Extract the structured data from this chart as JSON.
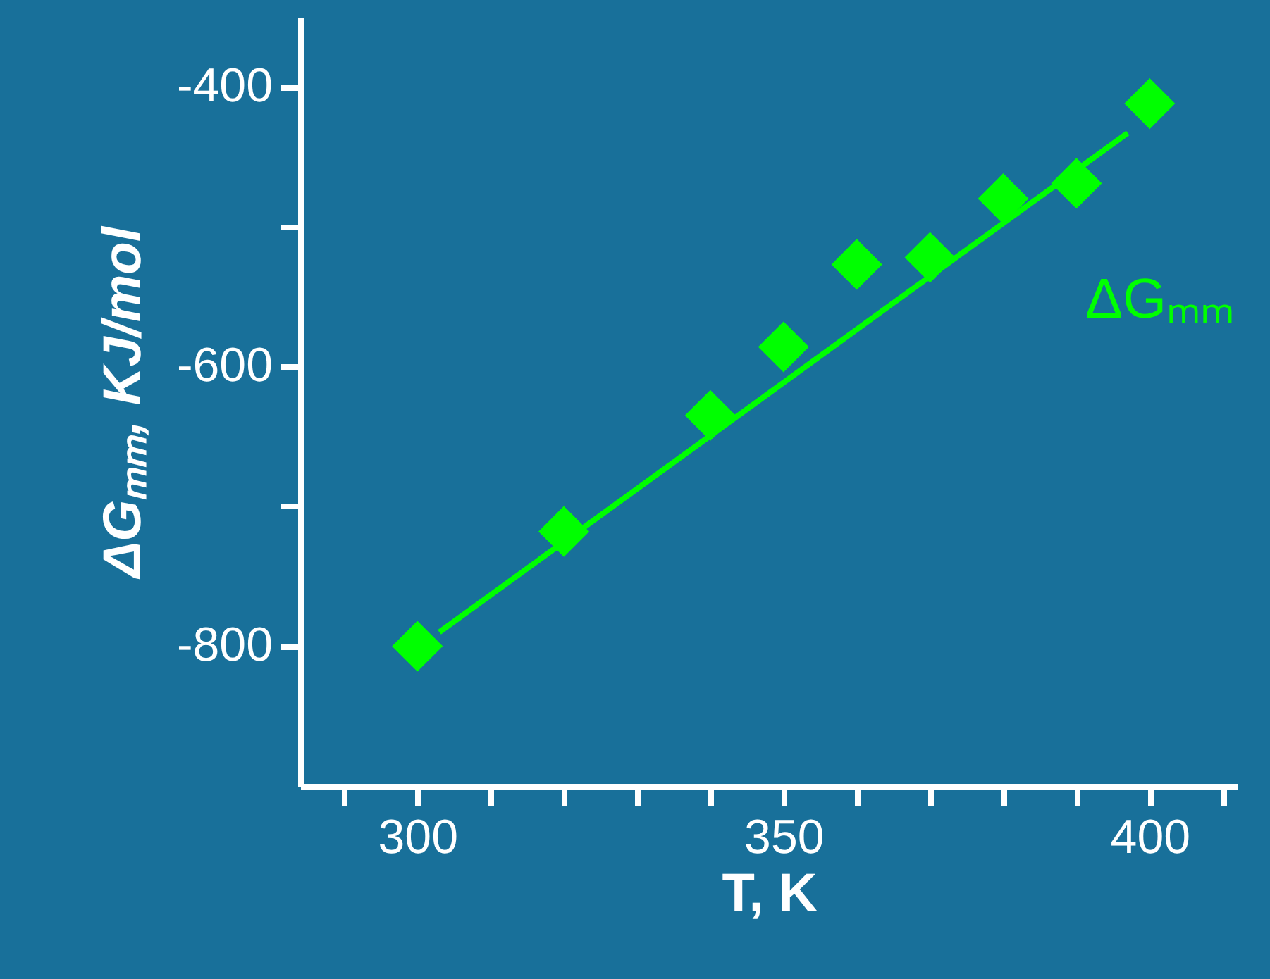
{
  "chart_data": {
    "type": "scatter",
    "xlabel": "T, K",
    "ylabel": "ΔGₘₘ, KJ/mol",
    "x": [
      300,
      320,
      340,
      350,
      360,
      370,
      380,
      390,
      400
    ],
    "series": [
      {
        "name": "ΔGₘₘ",
        "color": "#00ff00",
        "marker": "diamond",
        "values": [
          -800,
          -718,
          -635,
          -586,
          -527,
          -522,
          -480,
          -469,
          -412
        ]
      },
      {
        "type": "line",
        "color": "#00ff00",
        "x": [
          303,
          397
        ],
        "values": [
          -790,
          -433
        ]
      }
    ],
    "xlim": [
      284,
      412
    ],
    "ylim": [
      -900,
      -350
    ],
    "xticks": [
      {
        "value": 290,
        "label": null
      },
      300,
      {
        "value": 310,
        "label": null
      },
      {
        "value": 320,
        "label": null
      },
      {
        "value": 330,
        "label": null
      },
      {
        "value": 340,
        "label": null
      },
      350,
      {
        "value": 360,
        "label": null
      },
      {
        "value": 370,
        "label": null
      },
      {
        "value": 380,
        "label": null
      },
      {
        "value": 390,
        "label": null
      },
      400,
      {
        "value": 410,
        "label": null
      }
    ],
    "yticks": [
      -800,
      {
        "value": -700,
        "label": null
      },
      -600,
      {
        "value": -500,
        "label": null
      },
      -400
    ],
    "grid": false,
    "legend": false
  }
}
